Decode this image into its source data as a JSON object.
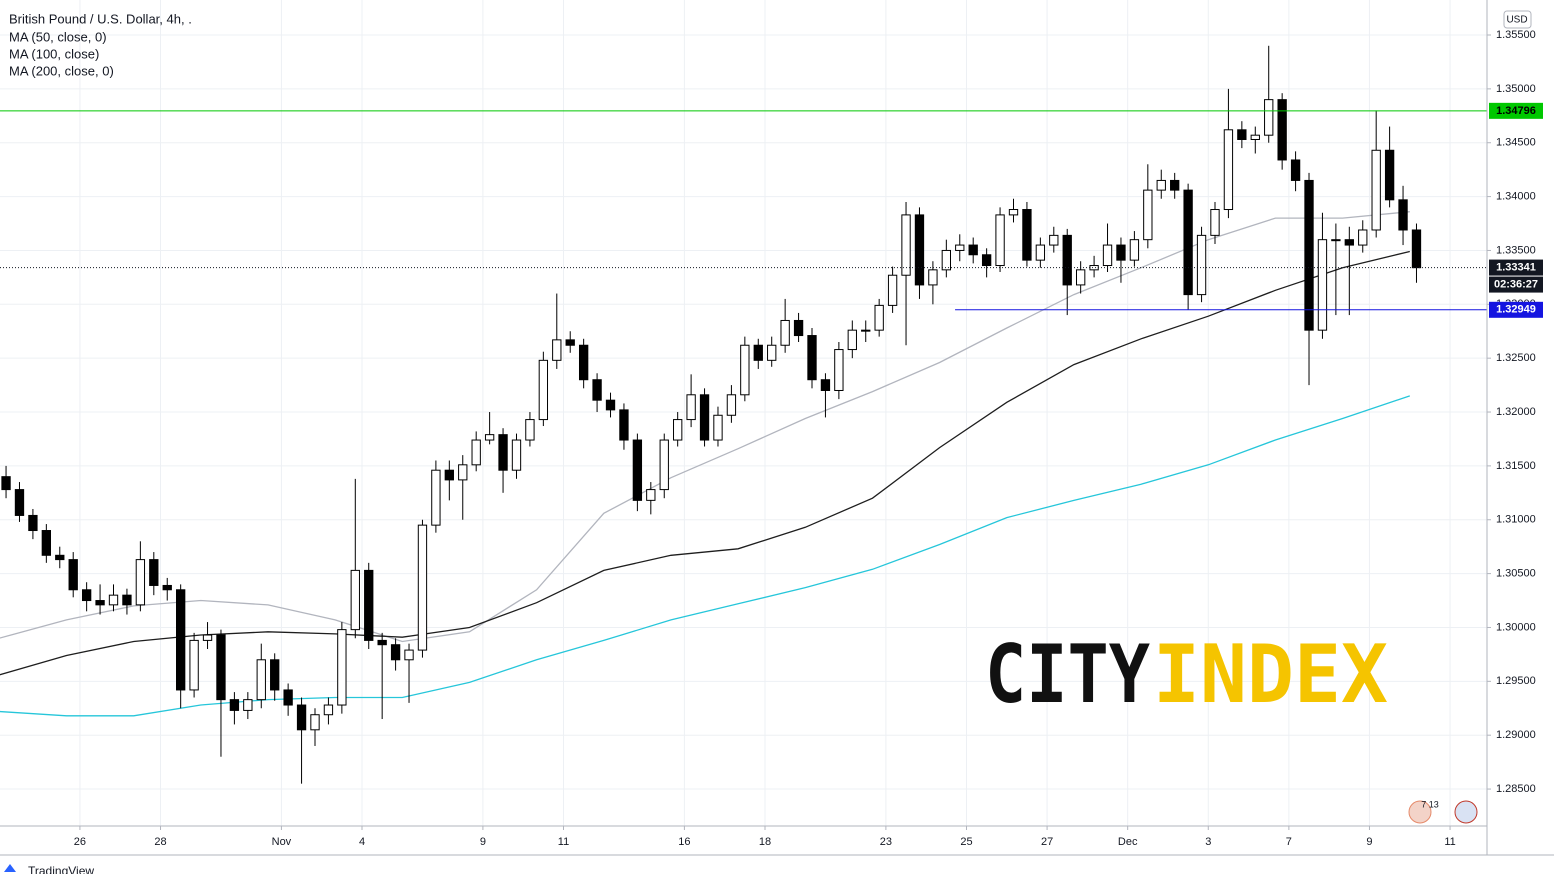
{
  "chart_data": {
    "type": "candlestick",
    "title": "British Pound / U.S. Dollar, 4h, .",
    "currency": "USD",
    "up_color": "#ffffff",
    "down_color": "#000000",
    "x": [
      -11,
      -9,
      -7,
      -5,
      -3,
      -1,
      1,
      3,
      5,
      7,
      9,
      11,
      13,
      15,
      17,
      19,
      21,
      23,
      25,
      27,
      29,
      31,
      33,
      35,
      37,
      39,
      41,
      43,
      45,
      47,
      49,
      51,
      53,
      55,
      57,
      59,
      61,
      63,
      65,
      67,
      69,
      71,
      73,
      75,
      77,
      79,
      81,
      83,
      85,
      87,
      89,
      91,
      93,
      95,
      97,
      99,
      101,
      103,
      105,
      107,
      109,
      111,
      113,
      115,
      117,
      119,
      121,
      123,
      125,
      127,
      129,
      131,
      133,
      135,
      137,
      139,
      141,
      143,
      145,
      147,
      149,
      151,
      153,
      155,
      157,
      159,
      161,
      163,
      165,
      167,
      169,
      171,
      173,
      175,
      177,
      179,
      181,
      183,
      185,
      187,
      189,
      191,
      193,
      195,
      197,
      199
    ],
    "ohlc": [
      [
        1.314,
        1.315,
        1.312,
        1.3128
      ],
      [
        1.3128,
        1.3135,
        1.3098,
        1.3104
      ],
      [
        1.3104,
        1.311,
        1.3082,
        1.309
      ],
      [
        1.309,
        1.3096,
        1.306,
        1.3067
      ],
      [
        1.3067,
        1.3075,
        1.3055,
        1.3063
      ],
      [
        1.3063,
        1.307,
        1.3028,
        1.3035
      ],
      [
        1.3035,
        1.3042,
        1.3015,
        1.3025
      ],
      [
        1.3025,
        1.304,
        1.3012,
        1.3021
      ],
      [
        1.3021,
        1.304,
        1.3015,
        1.303
      ],
      [
        1.303,
        1.3036,
        1.3012,
        1.3021
      ],
      [
        1.3021,
        1.308,
        1.3015,
        1.3063
      ],
      [
        1.3063,
        1.307,
        1.303,
        1.3039
      ],
      [
        1.3039,
        1.3046,
        1.3025,
        1.3035
      ],
      [
        1.3035,
        1.304,
        1.2925,
        1.2942
      ],
      [
        1.2942,
        1.2995,
        1.2935,
        1.2988
      ],
      [
        1.2988,
        1.3005,
        1.298,
        1.2993
      ],
      [
        1.2993,
        1.2998,
        1.288,
        1.2933
      ],
      [
        1.2933,
        1.294,
        1.291,
        1.2923
      ],
      [
        1.2923,
        1.294,
        1.2915,
        1.2933
      ],
      [
        1.2933,
        1.2985,
        1.2925,
        1.297
      ],
      [
        1.297,
        1.2976,
        1.2932,
        1.2942
      ],
      [
        1.2942,
        1.2948,
        1.2918,
        1.2928
      ],
      [
        1.2928,
        1.2935,
        1.2855,
        1.2905
      ],
      [
        1.2905,
        1.2925,
        1.289,
        1.2919
      ],
      [
        1.2919,
        1.2935,
        1.291,
        1.2928
      ],
      [
        1.2928,
        1.3005,
        1.292,
        1.2998
      ],
      [
        1.2998,
        1.3138,
        1.299,
        1.3053
      ],
      [
        1.3053,
        1.306,
        1.298,
        1.2988
      ],
      [
        1.2988,
        1.2995,
        1.2915,
        1.2984
      ],
      [
        1.2984,
        1.299,
        1.296,
        1.297
      ],
      [
        1.297,
        1.2985,
        1.293,
        1.2979
      ],
      [
        1.2979,
        1.31,
        1.2972,
        1.3095
      ],
      [
        1.3095,
        1.3155,
        1.3088,
        1.3146
      ],
      [
        1.3146,
        1.3155,
        1.3118,
        1.3137
      ],
      [
        1.3137,
        1.316,
        1.31,
        1.3151
      ],
      [
        1.3151,
        1.3182,
        1.3145,
        1.3174
      ],
      [
        1.3174,
        1.32,
        1.317,
        1.3179
      ],
      [
        1.3179,
        1.3185,
        1.3125,
        1.3146
      ],
      [
        1.3146,
        1.318,
        1.3138,
        1.3174
      ],
      [
        1.3174,
        1.32,
        1.3168,
        1.3193
      ],
      [
        1.3193,
        1.3256,
        1.3187,
        1.3248
      ],
      [
        1.3248,
        1.331,
        1.324,
        1.3267
      ],
      [
        1.3267,
        1.3275,
        1.3255,
        1.3262
      ],
      [
        1.3262,
        1.3268,
        1.3222,
        1.323
      ],
      [
        1.323,
        1.3236,
        1.32,
        1.3211
      ],
      [
        1.3211,
        1.3218,
        1.3195,
        1.3202
      ],
      [
        1.3202,
        1.3208,
        1.3165,
        1.3174
      ],
      [
        1.3174,
        1.318,
        1.3108,
        1.3118
      ],
      [
        1.3118,
        1.3135,
        1.3105,
        1.3128
      ],
      [
        1.3128,
        1.318,
        1.312,
        1.3174
      ],
      [
        1.3174,
        1.32,
        1.3168,
        1.3193
      ],
      [
        1.3193,
        1.3235,
        1.3186,
        1.3216
      ],
      [
        1.3216,
        1.3222,
        1.3168,
        1.3174
      ],
      [
        1.3174,
        1.3205,
        1.3168,
        1.3197
      ],
      [
        1.3197,
        1.3225,
        1.319,
        1.3216
      ],
      [
        1.3216,
        1.327,
        1.321,
        1.3262
      ],
      [
        1.3262,
        1.3268,
        1.324,
        1.3248
      ],
      [
        1.3248,
        1.327,
        1.3242,
        1.3262
      ],
      [
        1.3262,
        1.3305,
        1.3255,
        1.3285
      ],
      [
        1.3285,
        1.3292,
        1.3265,
        1.3271
      ],
      [
        1.3271,
        1.3278,
        1.3222,
        1.323
      ],
      [
        1.323,
        1.3236,
        1.3195,
        1.322
      ],
      [
        1.322,
        1.3265,
        1.3212,
        1.3258
      ],
      [
        1.3258,
        1.3285,
        1.325,
        1.3276
      ],
      [
        1.3276,
        1.3285,
        1.3265,
        1.3276
      ],
      [
        1.3276,
        1.3305,
        1.327,
        1.3299
      ],
      [
        1.3299,
        1.3335,
        1.3292,
        1.3327
      ],
      [
        1.3327,
        1.3395,
        1.3262,
        1.3383
      ],
      [
        1.3383,
        1.339,
        1.3305,
        1.3318
      ],
      [
        1.3318,
        1.334,
        1.33,
        1.3332
      ],
      [
        1.3332,
        1.336,
        1.3325,
        1.335
      ],
      [
        1.335,
        1.3365,
        1.334,
        1.3355
      ],
      [
        1.3355,
        1.3362,
        1.3338,
        1.3346
      ],
      [
        1.3346,
        1.3352,
        1.3325,
        1.3336
      ],
      [
        1.3336,
        1.339,
        1.333,
        1.3383
      ],
      [
        1.3383,
        1.3398,
        1.3376,
        1.3388
      ],
      [
        1.3388,
        1.3395,
        1.3335,
        1.3341
      ],
      [
        1.3341,
        1.3362,
        1.3334,
        1.3355
      ],
      [
        1.3355,
        1.3372,
        1.3348,
        1.3364
      ],
      [
        1.3364,
        1.337,
        1.329,
        1.3318
      ],
      [
        1.3318,
        1.334,
        1.331,
        1.3332
      ],
      [
        1.3332,
        1.3345,
        1.3325,
        1.3336
      ],
      [
        1.3336,
        1.3375,
        1.333,
        1.3355
      ],
      [
        1.3355,
        1.3362,
        1.332,
        1.3341
      ],
      [
        1.3341,
        1.3368,
        1.3335,
        1.336
      ],
      [
        1.336,
        1.343,
        1.3352,
        1.3406
      ],
      [
        1.3406,
        1.3425,
        1.3398,
        1.3415
      ],
      [
        1.3415,
        1.3422,
        1.3398,
        1.3406
      ],
      [
        1.3406,
        1.3412,
        1.3295,
        1.3309
      ],
      [
        1.3309,
        1.3372,
        1.3302,
        1.3364
      ],
      [
        1.3364,
        1.3395,
        1.3356,
        1.3388
      ],
      [
        1.3388,
        1.35,
        1.338,
        1.3462
      ],
      [
        1.3462,
        1.347,
        1.3445,
        1.3453
      ],
      [
        1.3453,
        1.3465,
        1.344,
        1.3457
      ],
      [
        1.3457,
        1.354,
        1.345,
        1.349
      ],
      [
        1.349,
        1.3496,
        1.3425,
        1.3434
      ],
      [
        1.3434,
        1.3442,
        1.3405,
        1.3415
      ],
      [
        1.3415,
        1.3422,
        1.3225,
        1.3276
      ],
      [
        1.3276,
        1.3385,
        1.3268,
        1.336
      ],
      [
        1.336,
        1.3375,
        1.329,
        1.336
      ],
      [
        1.336,
        1.3372,
        1.329,
        1.3355
      ],
      [
        1.3355,
        1.3378,
        1.3348,
        1.3369
      ],
      [
        1.3369,
        1.348,
        1.3362,
        1.3443
      ],
      [
        1.3443,
        1.3465,
        1.339,
        1.3397
      ],
      [
        1.3397,
        1.341,
        1.3355,
        1.3369
      ],
      [
        1.3369,
        1.3375,
        1.332,
        1.3334
      ]
    ],
    "overlays": [
      {
        "name": "MA (50, close, 0)",
        "color": "#b2b5be",
        "x": [
          -12,
          -2,
          8,
          18,
          28,
          38,
          48,
          58,
          68,
          78,
          88,
          98,
          108,
          118,
          128,
          138,
          148,
          158,
          168,
          178,
          188,
          198
        ],
        "values": [
          1.299,
          1.3007,
          1.302,
          1.3025,
          1.3021,
          1.3007,
          1.2987,
          1.2996,
          1.3035,
          1.3106,
          1.3139,
          1.3166,
          1.3194,
          1.3219,
          1.3246,
          1.3278,
          1.3309,
          1.3334,
          1.336,
          1.338,
          1.338,
          1.3386
        ]
      },
      {
        "name": "MA (100, close)",
        "color": "#1e1e1e",
        "x": [
          -12,
          -2,
          8,
          18,
          28,
          38,
          48,
          58,
          68,
          78,
          88,
          98,
          108,
          118,
          128,
          138,
          148,
          158,
          168,
          178,
          188,
          198
        ],
        "values": [
          1.2956,
          1.2974,
          1.2987,
          1.2993,
          1.2996,
          1.2994,
          1.2991,
          1.3,
          1.3023,
          1.3053,
          1.3067,
          1.3073,
          1.3093,
          1.312,
          1.3167,
          1.3209,
          1.3244,
          1.3268,
          1.3289,
          1.3313,
          1.3334,
          1.3349
        ]
      },
      {
        "name": "MA (200, close, 0)",
        "color": "#26c6da",
        "x": [
          -12,
          -2,
          8,
          18,
          28,
          38,
          48,
          58,
          68,
          78,
          88,
          98,
          108,
          118,
          128,
          138,
          148,
          158,
          168,
          178,
          188,
          198
        ],
        "values": [
          1.2922,
          1.2918,
          1.2918,
          1.2928,
          1.2933,
          1.2935,
          1.2935,
          1.2949,
          1.297,
          1.2988,
          1.3007,
          1.3022,
          1.3037,
          1.3054,
          1.3077,
          1.3102,
          1.3118,
          1.3133,
          1.3151,
          1.3174,
          1.3194,
          1.3215
        ]
      }
    ],
    "levels": [
      {
        "value": 1.34796,
        "color": "#00c800"
      },
      {
        "value": 1.32949,
        "color": "#1515e0",
        "x_start": 130.3
      },
      {
        "value": 1.33341,
        "color": "#131722",
        "countdown": "02:36:27"
      }
    ],
    "xlim": [
      -11.9,
      209.5
    ],
    "xticks": [
      {
        "value": 0,
        "label": "26"
      },
      {
        "value": 12,
        "label": "28"
      },
      {
        "value": 30,
        "label": "Nov"
      },
      {
        "value": 42,
        "label": "4"
      },
      {
        "value": 60,
        "label": "9"
      },
      {
        "value": 72,
        "label": "11"
      },
      {
        "value": 90,
        "label": "16"
      },
      {
        "value": 102,
        "label": "18"
      },
      {
        "value": 120,
        "label": "23"
      },
      {
        "value": 132,
        "label": "25"
      },
      {
        "value": 144,
        "label": "27"
      },
      {
        "value": 156,
        "label": "Dec"
      },
      {
        "value": 168,
        "label": "3"
      },
      {
        "value": 180,
        "label": "7"
      },
      {
        "value": 192,
        "label": "9"
      },
      {
        "value": 204,
        "label": "11"
      }
    ],
    "ylim": [
      1.28157,
      1.35825
    ],
    "yticks": [
      {
        "value": 1.285,
        "label": "1.28500"
      },
      {
        "value": 1.29,
        "label": "1.29000"
      },
      {
        "value": 1.295,
        "label": "1.29500"
      },
      {
        "value": 1.3,
        "label": "1.30000"
      },
      {
        "value": 1.305,
        "label": "1.30500"
      },
      {
        "value": 1.31,
        "label": "1.31000"
      },
      {
        "value": 1.315,
        "label": "1.31500"
      },
      {
        "value": 1.32,
        "label": "1.32000"
      },
      {
        "value": 1.325,
        "label": "1.32500"
      },
      {
        "value": 1.33,
        "label": "1.33000"
      },
      {
        "value": 1.335,
        "label": "1.33500"
      },
      {
        "value": 1.34,
        "label": "1.34000"
      },
      {
        "value": 1.345,
        "label": "1.34500"
      },
      {
        "value": 1.35,
        "label": "1.35000"
      },
      {
        "value": 1.355,
        "label": "1.35500"
      }
    ],
    "grid": true,
    "watermark": [
      "CITY",
      "INDEX"
    ],
    "badge": "7 13",
    "footer": "TradingView"
  }
}
